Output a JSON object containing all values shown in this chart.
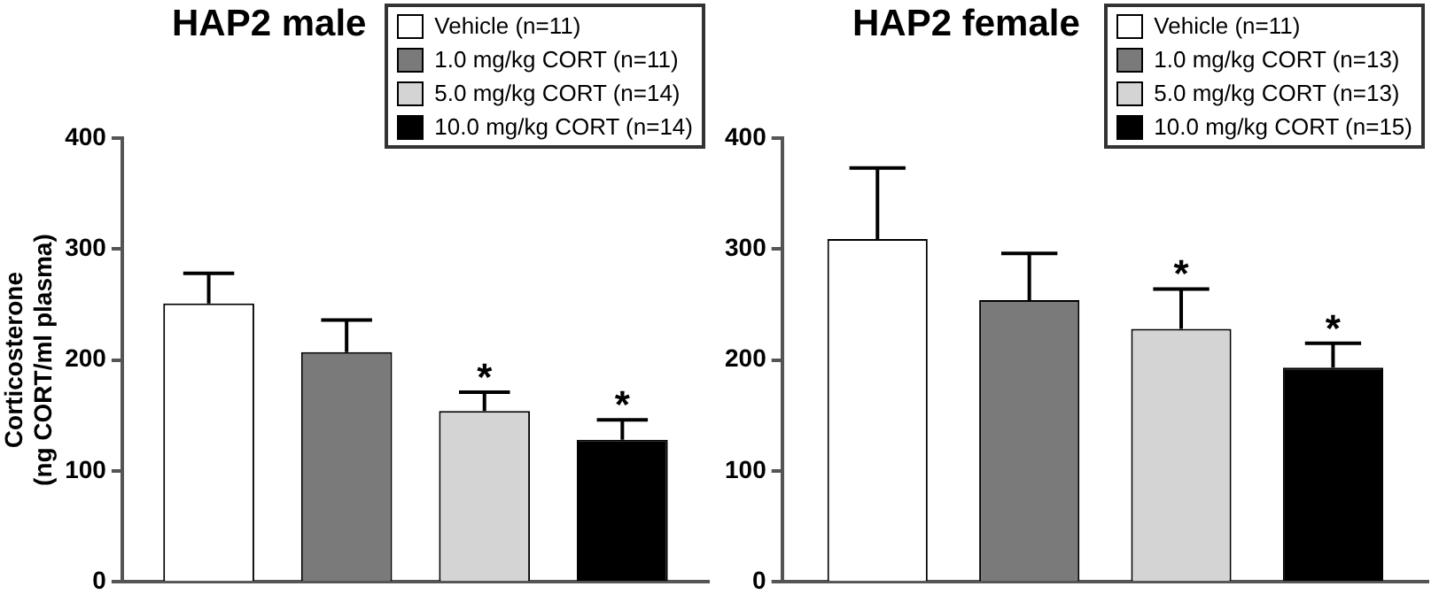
{
  "chart_data": [
    {
      "type": "bar",
      "title": "HAP2 male",
      "ylabel": "Corticosterone\n(ng CORT/ml plasma)",
      "categories": [
        null
      ],
      "ylim": [
        0,
        400
      ],
      "yticks": [
        0,
        100,
        200,
        300,
        400
      ],
      "legend": "top right",
      "tick_labels": "y",
      "grid": false,
      "series": [
        {
          "name": "Vehicle (n=11)",
          "color": "#ffffff",
          "values": [
            251
          ],
          "errors": [
            27
          ]
        },
        {
          "name": "1.0 mg/kg CORT (n=11)",
          "color": "#7a7a7a",
          "values": [
            207
          ],
          "errors": [
            29
          ]
        },
        {
          "name": "5.0 mg/kg CORT (n=14)",
          "color": "#d4d4d4",
          "values": [
            154
          ],
          "errors": [
            17
          ],
          "value_labels": [
            "*"
          ]
        },
        {
          "name": "10.0 mg/kg CORT (n=14)",
          "color": "#000000",
          "values": [
            128
          ],
          "errors": [
            18
          ],
          "value_labels": [
            "*"
          ]
        }
      ]
    },
    {
      "type": "bar",
      "title": "HAP2 female",
      "categories": [
        null
      ],
      "ylim": [
        0,
        400
      ],
      "yticks": [
        0,
        100,
        200,
        300,
        400
      ],
      "legend": "top right",
      "tick_labels": "y",
      "grid": false,
      "series": [
        {
          "name": "Vehicle (n=11)",
          "color": "#ffffff",
          "values": [
            309
          ],
          "errors": [
            64
          ]
        },
        {
          "name": "1.0 mg/kg CORT (n=13)",
          "color": "#7a7a7a",
          "values": [
            254
          ],
          "errors": [
            42
          ]
        },
        {
          "name": "5.0 mg/kg CORT (n=13)",
          "color": "#d4d4d4",
          "values": [
            228
          ],
          "errors": [
            36
          ],
          "value_labels": [
            "*"
          ]
        },
        {
          "name": "10.0 mg/kg CORT (n=15)",
          "color": "#000000",
          "values": [
            193
          ],
          "errors": [
            22
          ],
          "value_labels": [
            "*"
          ]
        }
      ]
    }
  ]
}
